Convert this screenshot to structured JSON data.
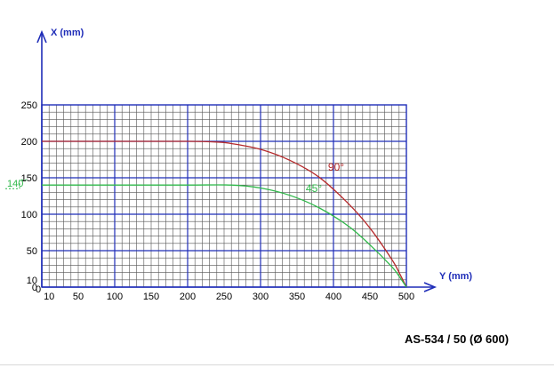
{
  "chart_data": {
    "type": "line",
    "model_caption": "AS-534 / 50 (Ø 600)",
    "xlabel": "Y (mm)",
    "ylabel": "X (mm)",
    "xlim": [
      0,
      500
    ],
    "ylim": [
      0,
      250
    ],
    "grid": true,
    "x_ticks": [
      "10",
      "50",
      "100",
      "150",
      "200",
      "250",
      "300",
      "350",
      "400",
      "450",
      "500"
    ],
    "x_tick_values": [
      10,
      50,
      100,
      150,
      200,
      250,
      300,
      350,
      400,
      450,
      500
    ],
    "x_origin_label": "0",
    "y_ticks": [
      "10",
      "50",
      "100",
      "150",
      "200",
      "250"
    ],
    "y_tick_values": [
      10,
      50,
      100,
      150,
      200,
      250
    ],
    "y_origin_label": "0",
    "marked_value": {
      "label": "140",
      "value": 140,
      "color": "#2fb84a"
    },
    "series": [
      {
        "name": "90°",
        "color": "#b5292b",
        "x": [
          0,
          100,
          200,
          240,
          260,
          300,
          340,
          380,
          420,
          450,
          480,
          490,
          500
        ],
        "y": [
          200,
          200,
          200,
          199,
          197,
          189,
          174,
          151,
          115,
          81,
          38,
          20,
          0
        ]
      },
      {
        "name": "45°",
        "color": "#2fb84a",
        "x": [
          0,
          100,
          200,
          260,
          300,
          340,
          380,
          420,
          450,
          480,
          490,
          500
        ],
        "y": [
          140,
          140,
          140,
          140,
          136,
          126,
          109,
          84,
          58,
          28,
          15,
          0
        ]
      }
    ]
  }
}
